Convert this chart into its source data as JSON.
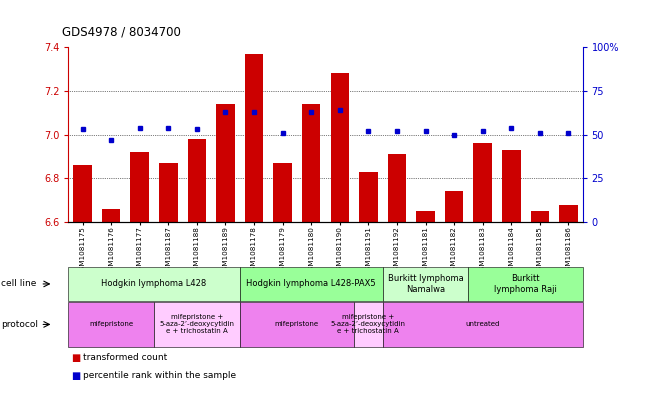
{
  "title": "GDS4978 / 8034700",
  "samples": [
    "GSM1081175",
    "GSM1081176",
    "GSM1081177",
    "GSM1081187",
    "GSM1081188",
    "GSM1081189",
    "GSM1081178",
    "GSM1081179",
    "GSM1081180",
    "GSM1081190",
    "GSM1081191",
    "GSM1081192",
    "GSM1081181",
    "GSM1081182",
    "GSM1081183",
    "GSM1081184",
    "GSM1081185",
    "GSM1081186"
  ],
  "bar_values": [
    6.86,
    6.66,
    6.92,
    6.87,
    6.98,
    7.14,
    7.37,
    6.87,
    7.14,
    7.28,
    6.83,
    6.91,
    6.65,
    6.74,
    6.96,
    6.93,
    6.65,
    6.68
  ],
  "dot_values": [
    53,
    47,
    54,
    54,
    53,
    63,
    63,
    51,
    63,
    64,
    52,
    52,
    52,
    50,
    52,
    54,
    51,
    51
  ],
  "bar_color": "#cc0000",
  "dot_color": "#0000cc",
  "ymin": 6.6,
  "ymax": 7.4,
  "yticks": [
    6.6,
    6.8,
    7.0,
    7.2,
    7.4
  ],
  "y2min": 0,
  "y2max": 100,
  "y2ticks": [
    0,
    25,
    50,
    75,
    100
  ],
  "y2ticklabels": [
    "0",
    "25",
    "50",
    "75",
    "100%"
  ],
  "cell_line_groups": [
    {
      "label": "Hodgkin lymphoma L428",
      "start": 0,
      "end": 5,
      "color": "#ccffcc"
    },
    {
      "label": "Hodgkin lymphoma L428-PAX5",
      "start": 6,
      "end": 10,
      "color": "#99ff99"
    },
    {
      "label": "Burkitt lymphoma\nNamalwa",
      "start": 11,
      "end": 13,
      "color": "#ccffcc"
    },
    {
      "label": "Burkitt\nlymphoma Raji",
      "start": 14,
      "end": 17,
      "color": "#99ff99"
    }
  ],
  "protocol_groups": [
    {
      "label": "mifepristone",
      "start": 0,
      "end": 2,
      "color": "#ee82ee"
    },
    {
      "label": "mifepristone +\n5-aza-2’-deoxycytidin\ne + trichostatin A",
      "start": 3,
      "end": 5,
      "color": "#ffccff"
    },
    {
      "label": "mifepristone",
      "start": 6,
      "end": 9,
      "color": "#ee82ee"
    },
    {
      "label": "mifepristone +\n5-aza-2’-deoxycytidin\ne + trichostatin A",
      "start": 10,
      "end": 10,
      "color": "#ffccff"
    },
    {
      "label": "untreated",
      "start": 11,
      "end": 17,
      "color": "#ee82ee"
    }
  ],
  "legend_items": [
    {
      "color": "#cc0000",
      "label": "transformed count"
    },
    {
      "color": "#0000cc",
      "label": "percentile rank within the sample"
    }
  ]
}
